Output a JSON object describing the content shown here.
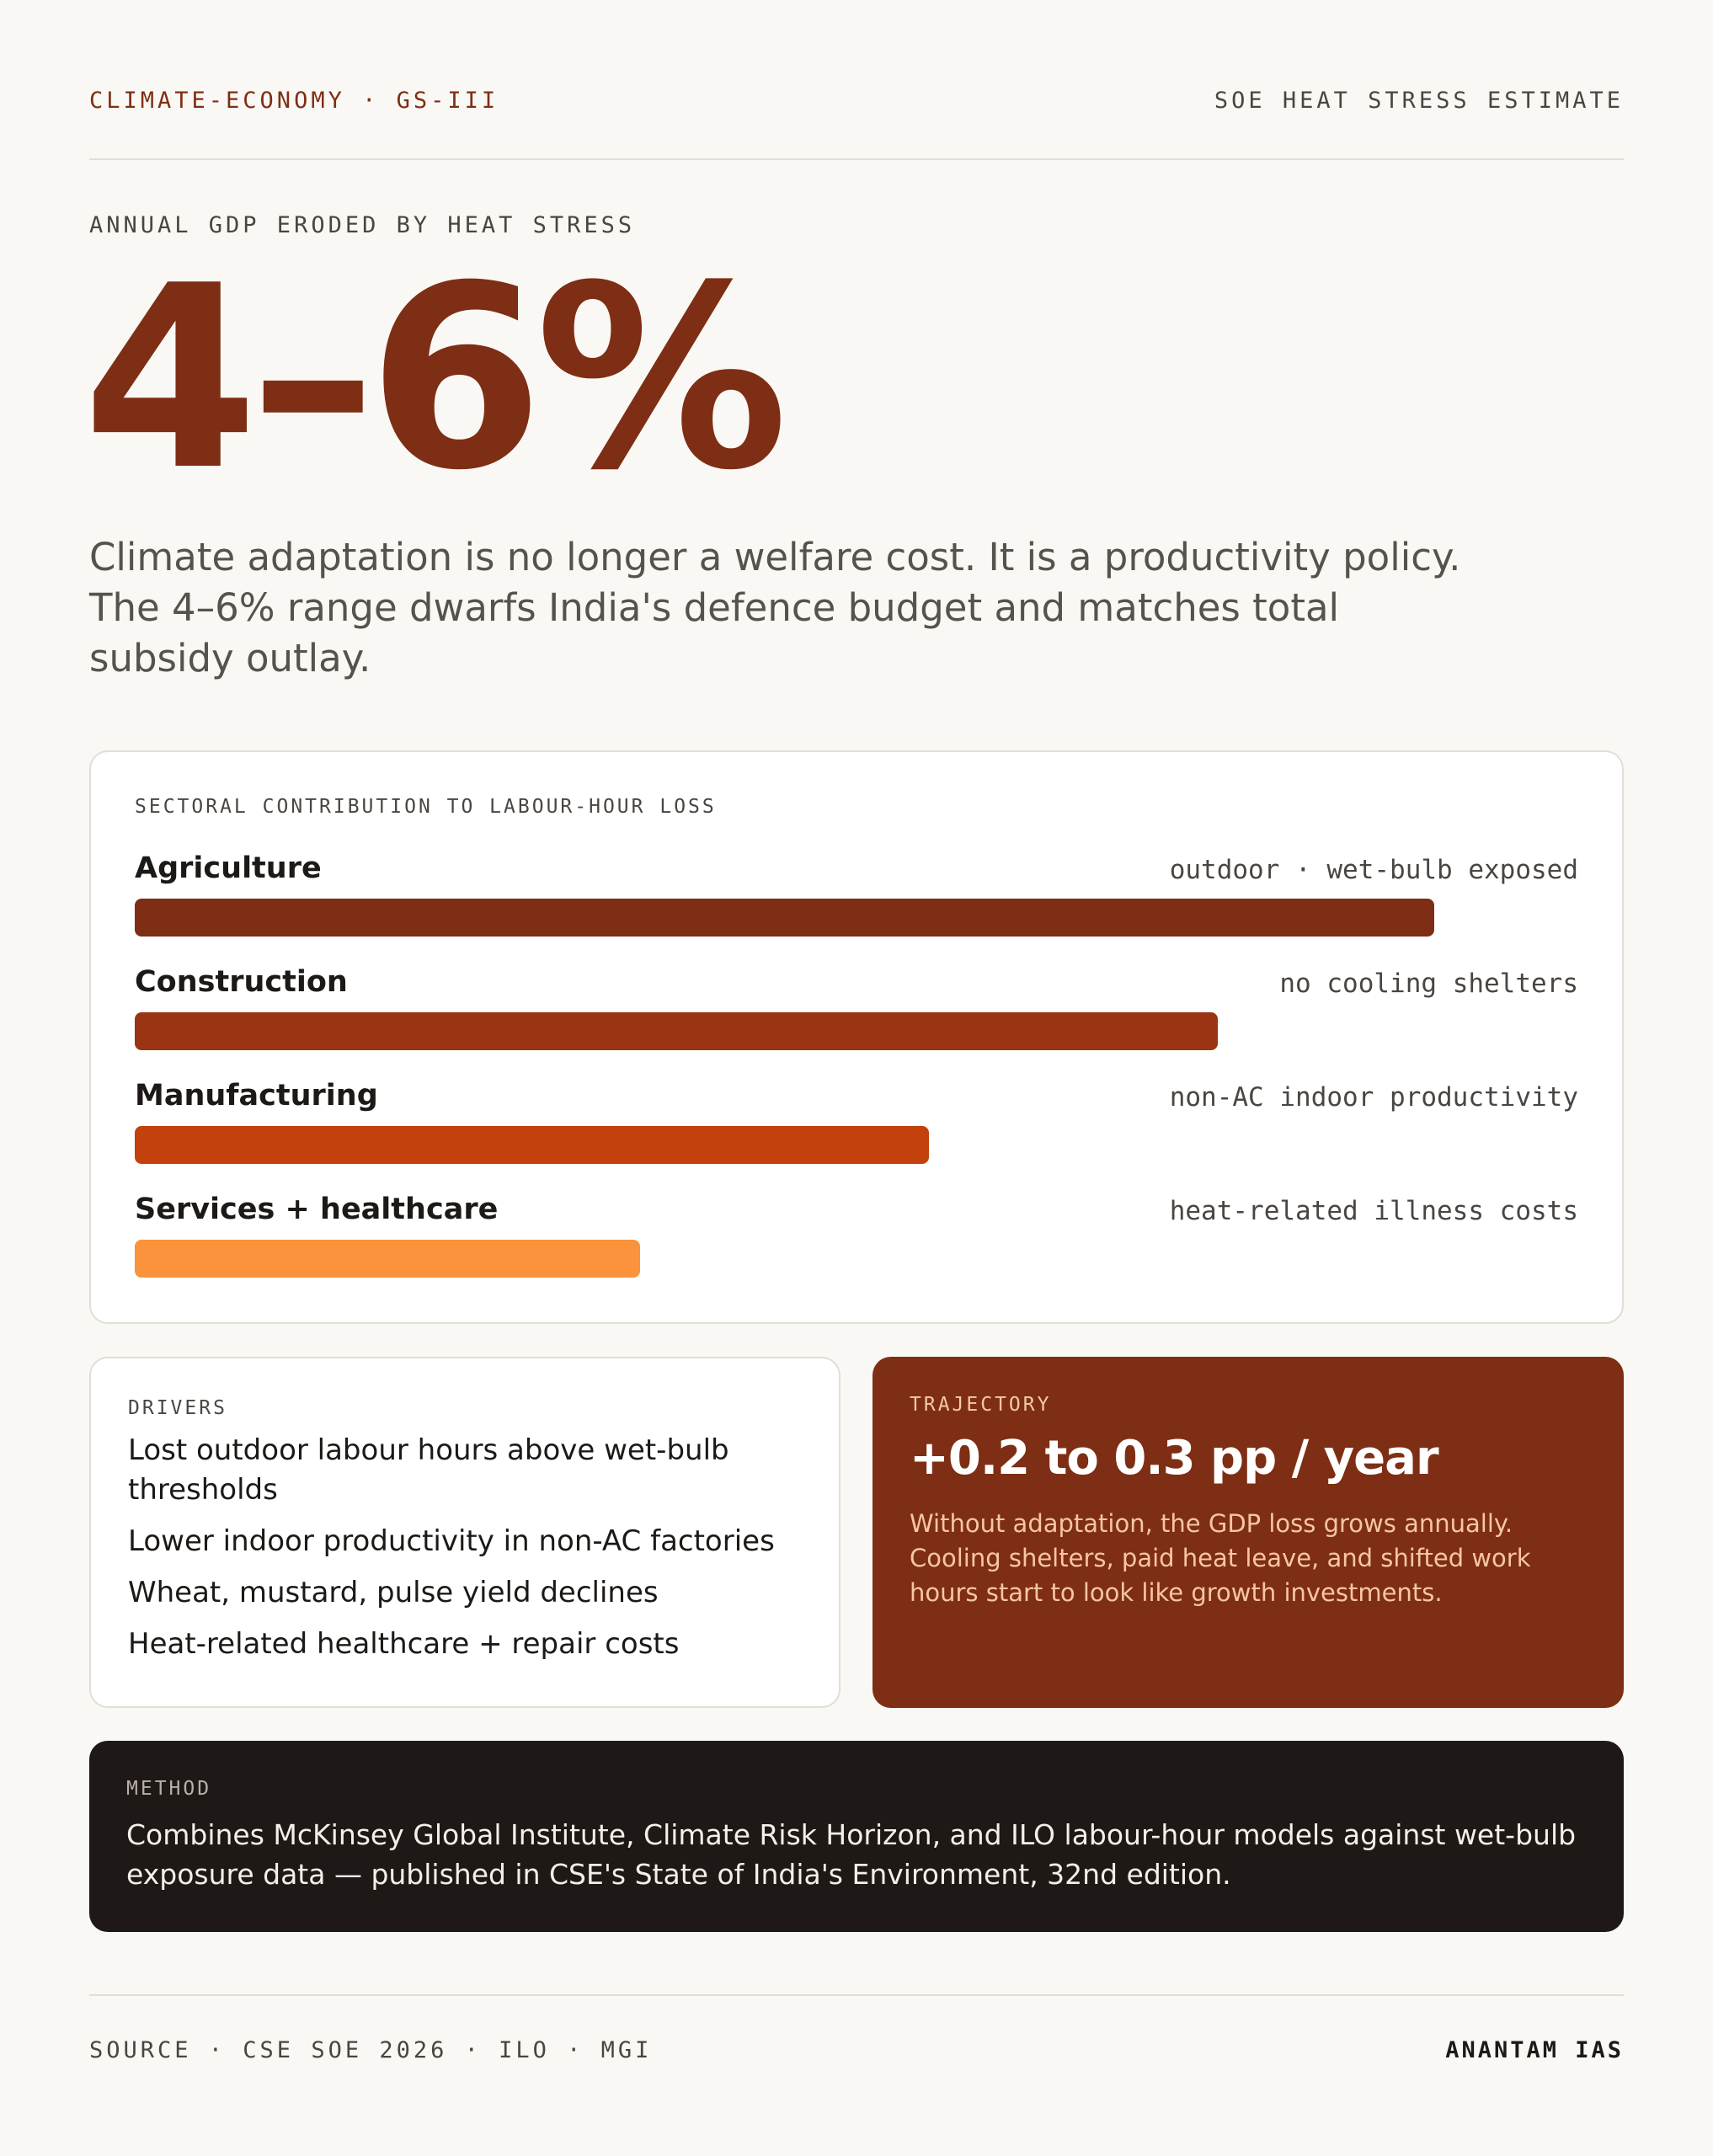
{
  "header": {
    "category": "CLIMATE-ECONOMY · GS-III",
    "tag": "SOE HEAT STRESS ESTIMATE"
  },
  "hero": {
    "label": "ANNUAL GDP ERODED BY HEAT STRESS",
    "value": "4–6%",
    "lede": "Climate adaptation is no longer a welfare cost. It is a productivity policy. The 4–6% range dwarfs India's defence budget and matches total subsidy outlay."
  },
  "colors": {
    "accent": "#7e2e14",
    "bar_1": "#7e2e14",
    "bar_2": "#9a3412",
    "bar_3": "#c2410c",
    "bar_4": "#fb923c",
    "method_bg": "#1e1916"
  },
  "chart_data": {
    "type": "bar",
    "title": "SECTORAL CONTRIBUTION TO LABOUR-HOUR LOSS",
    "orientation": "horizontal",
    "categories": [
      "Agriculture",
      "Construction",
      "Manufacturing",
      "Services + healthcare"
    ],
    "notes": [
      "outdoor · wet-bulb exposed",
      "no cooling shelters",
      "non-AC indoor productivity",
      "heat-related illness costs"
    ],
    "values": [
      90,
      75,
      55,
      35
    ],
    "ylim": [
      0,
      100
    ],
    "grid": false
  },
  "drivers": {
    "title": "DRIVERS",
    "items": [
      "Lost outdoor labour hours above wet-bulb thresholds",
      "Lower indoor productivity in non-AC factories",
      "Wheat, mustard, pulse yield declines",
      "Heat-related healthcare + repair costs"
    ]
  },
  "trajectory": {
    "title": "TRAJECTORY",
    "value": "+0.2 to 0.3 pp / year",
    "body": "Without adaptation, the GDP loss grows annually. Cooling shelters, paid heat leave, and shifted work hours start to look like growth investments."
  },
  "method": {
    "title": "METHOD",
    "body": "Combines McKinsey Global Institute, Climate Risk Horizon, and ILO labour-hour models against wet-bulb exposure data — published in CSE's State of India's Environment, 32nd edition."
  },
  "footer": {
    "source": "SOURCE · CSE SOE 2026 · ILO · MGI",
    "brand": "ANANTAM IAS"
  }
}
